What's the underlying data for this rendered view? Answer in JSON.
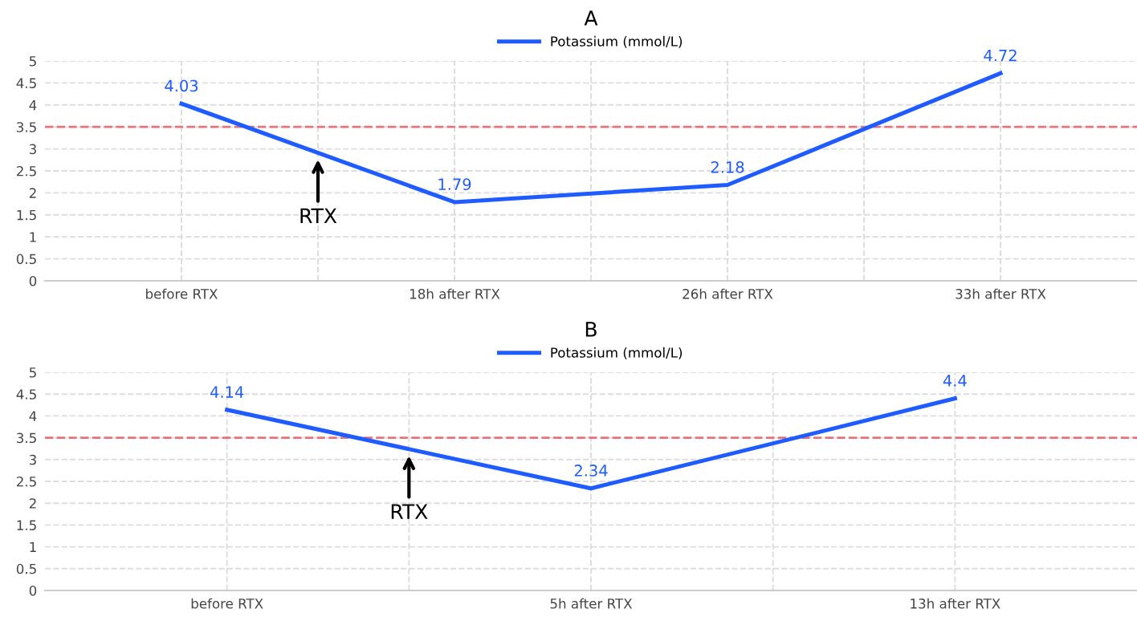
{
  "chart_data": [
    {
      "type": "line",
      "title": "A",
      "categories": [
        "before RTX",
        "18h after RTX",
        "26h after RTX",
        "33h after RTX"
      ],
      "series": [
        {
          "name": "Potassium (mmol/L)",
          "color": "#1f5cff",
          "values": [
            4.03,
            1.79,
            2.18,
            4.72
          ]
        }
      ],
      "ylim": [
        0,
        5
      ],
      "yticks": [
        0,
        0.5,
        1,
        1.5,
        2,
        2.5,
        3,
        3.5,
        4,
        4.5,
        5
      ],
      "grid": true,
      "legend": "top",
      "marker": "none",
      "line_style": "solid",
      "data_labels": true,
      "ref_lines": [
        {
          "axis": "y",
          "value": 3.5,
          "color": "#e8737a",
          "line_style": "dashed"
        }
      ],
      "annotations": [
        "RTX"
      ]
    },
    {
      "type": "line",
      "title": "B",
      "categories": [
        "before RTX",
        "5h after RTX",
        "13h after RTX"
      ],
      "series": [
        {
          "name": "Potassium (mmol/L)",
          "color": "#1f5cff",
          "values": [
            4.14,
            2.34,
            4.4
          ]
        }
      ],
      "ylim": [
        0,
        5
      ],
      "yticks": [
        0,
        0.5,
        1,
        1.5,
        2,
        2.5,
        3,
        3.5,
        4,
        4.5,
        5
      ],
      "grid": true,
      "legend": "top",
      "marker": "none",
      "line_style": "solid",
      "data_labels": true,
      "ref_lines": [
        {
          "axis": "y",
          "value": 3.5,
          "color": "#e8737a",
          "line_style": "dashed"
        }
      ],
      "annotations": [
        "RTX"
      ]
    }
  ]
}
